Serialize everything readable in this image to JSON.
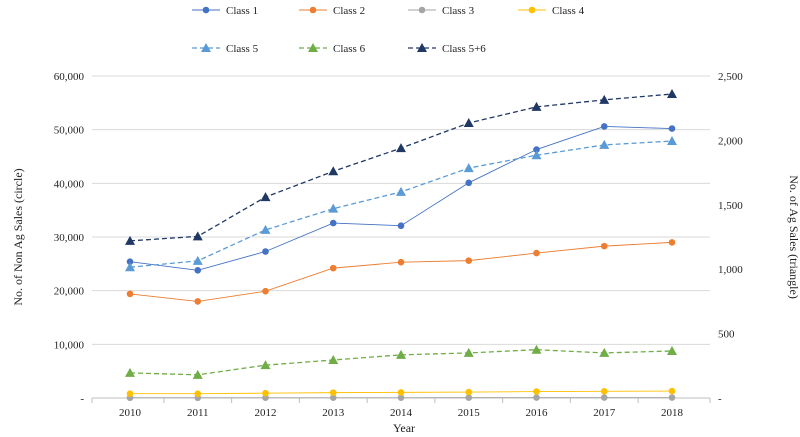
{
  "chart_data": {
    "type": "line",
    "title": "",
    "xlabel": "Year",
    "ylabel_left": "No. of Non Ag Sales (circle)",
    "ylabel_right": "No. of Ag Sales (triangle)",
    "x": [
      2010,
      2011,
      2012,
      2013,
      2014,
      2015,
      2016,
      2017,
      2018
    ],
    "x_tick_labels": [
      "2010",
      "2011",
      "2012",
      "2013",
      "2014",
      "2015",
      "2016",
      "2017",
      "2018"
    ],
    "ylim_left": [
      0,
      60000
    ],
    "ylim_right": [
      0,
      2500
    ],
    "left_ticks": [
      0,
      10000,
      20000,
      30000,
      40000,
      50000,
      60000
    ],
    "left_tick_labels": [
      "-",
      "10,000",
      "20,000",
      "30,000",
      "40,000",
      "50,000",
      "60,000"
    ],
    "right_ticks": [
      0,
      500,
      1000,
      1500,
      2000,
      2500
    ],
    "right_tick_labels": [
      "-",
      "500",
      "1,000",
      "1,500",
      "2,000",
      "2,500"
    ],
    "grid": "horizontal",
    "legend_position": "top",
    "series": [
      {
        "name": "Class 1",
        "axis": "left",
        "marker": "circle",
        "dash": "solid",
        "color": "#4472C4",
        "values": [
          25400,
          23800,
          27300,
          32600,
          32100,
          40100,
          46300,
          50600,
          50200
        ]
      },
      {
        "name": "Class 2",
        "axis": "left",
        "marker": "circle",
        "dash": "solid",
        "color": "#ED7D31",
        "values": [
          19400,
          18000,
          19900,
          24200,
          25300,
          25600,
          27000,
          28300,
          29000
        ]
      },
      {
        "name": "Class 3",
        "axis": "left",
        "marker": "circle",
        "dash": "solid",
        "color": "#A5A5A5",
        "values": [
          50,
          50,
          60,
          60,
          60,
          70,
          80,
          80,
          90
        ]
      },
      {
        "name": "Class 4",
        "axis": "left",
        "marker": "circle",
        "dash": "solid",
        "color": "#FFC000",
        "values": [
          800,
          800,
          900,
          1000,
          1050,
          1100,
          1200,
          1250,
          1300
        ]
      },
      {
        "name": "Class 5",
        "axis": "right",
        "marker": "triangle",
        "dash": "dashed",
        "color": "#5B9BD5",
        "values": [
          1015,
          1065,
          1305,
          1470,
          1600,
          1785,
          1885,
          1965,
          1995
        ]
      },
      {
        "name": "Class 6",
        "axis": "right",
        "marker": "triangle",
        "dash": "dashed",
        "color": "#70AD47",
        "values": [
          195,
          180,
          255,
          295,
          335,
          350,
          375,
          350,
          365
        ]
      },
      {
        "name": "Class 5+6",
        "axis": "right",
        "marker": "triangle",
        "dash": "dashed",
        "color": "#203864",
        "values": [
          1220,
          1255,
          1560,
          1760,
          1940,
          2135,
          2260,
          2315,
          2360
        ]
      }
    ]
  }
}
